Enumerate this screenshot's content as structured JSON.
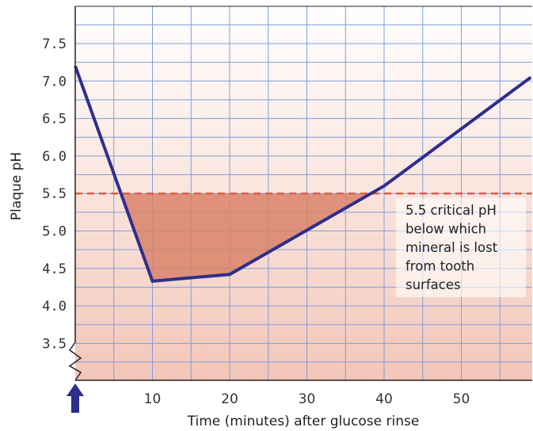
{
  "chart_data": {
    "type": "line",
    "title": "",
    "xlabel": "Time (minutes) after glucose rinse",
    "ylabel": "Plaque pH",
    "xlim": [
      0,
      59
    ],
    "ylim": [
      3.0,
      8.0
    ],
    "x_ticks": [
      "10",
      "20",
      "30",
      "40",
      "50"
    ],
    "x_tick_values": [
      10,
      20,
      30,
      40,
      50
    ],
    "y_ticks": [
      "7.5",
      "7.0",
      "6.5",
      "6.0",
      "5.5",
      "5.0",
      "4.5",
      "4.0",
      "3.5"
    ],
    "y_tick_values": [
      7.5,
      7.0,
      6.5,
      6.0,
      5.5,
      5.0,
      4.5,
      4.0,
      3.5
    ],
    "grid": true,
    "y_axis_break": true,
    "series": [
      {
        "x": [
          0,
          10,
          20,
          40,
          59
        ],
        "y": [
          7.2,
          4.33,
          4.42,
          5.6,
          7.05
        ]
      }
    ],
    "reference_line": {
      "y": 5.5,
      "style": "dashed"
    },
    "shaded_region": "area below pH 5.5 and above the curve",
    "annotation": {
      "lines": [
        "5.5 critical pH",
        "below which",
        "mineral is lost",
        "from tooth",
        "surfaces"
      ]
    },
    "marker": "up-arrow at time 0 on x-axis",
    "colors": {
      "line": "#2e2e8c",
      "reference": "#d9614a",
      "shade": "#d9826a",
      "grid": "#7f9fdc",
      "background_top": "#ffffff",
      "background_bottom": "#f3c6b8",
      "arrow": "#2e2e8c"
    }
  }
}
